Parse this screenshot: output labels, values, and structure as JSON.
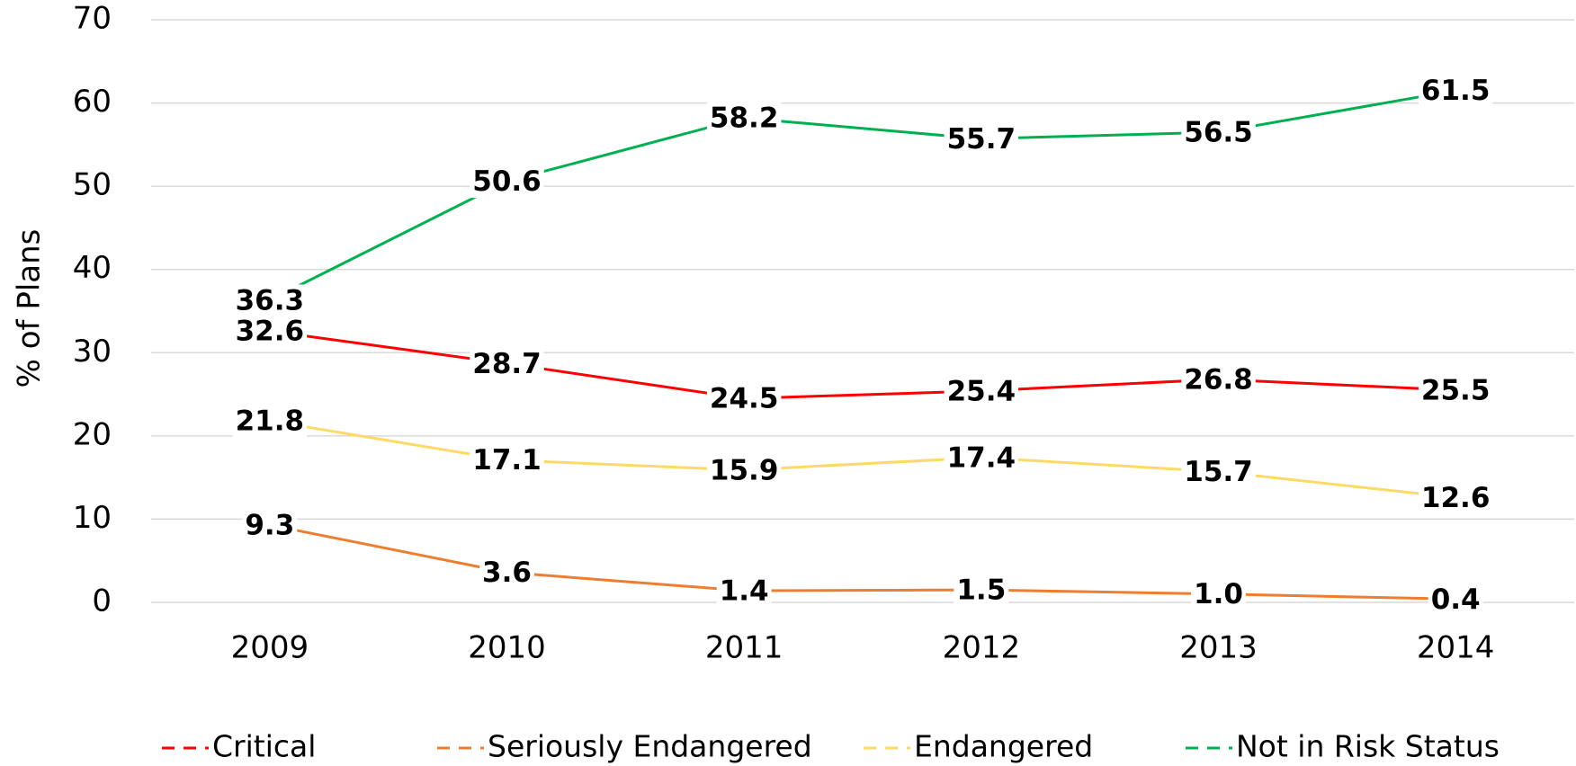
{
  "chart_data": {
    "type": "line",
    "y_label": "% of Plans",
    "categories": [
      "2009",
      "2010",
      "2011",
      "2012",
      "2013",
      "2014"
    ],
    "series": [
      {
        "name": "Critical",
        "color": "#ff0000",
        "values": [
          32.6,
          28.7,
          24.5,
          25.4,
          26.8,
          25.5
        ]
      },
      {
        "name": "Seriously Endangered",
        "color": "#ed7d31",
        "values": [
          9.3,
          3.6,
          1.4,
          1.5,
          1,
          0.4
        ],
        "value_labels": [
          "9.3",
          "3.6",
          "1.4",
          "1.5",
          "1.0",
          "0.4"
        ]
      },
      {
        "name": "Endangered",
        "color": "#ffd966",
        "values": [
          21.8,
          17.1,
          15.9,
          17.4,
          15.7,
          12.6
        ]
      },
      {
        "name": "Not in Risk Status",
        "color": "#00b050",
        "values": [
          36.3,
          50.6,
          58.2,
          55.7,
          56.5,
          61.5
        ]
      }
    ],
    "ylim": [
      0,
      70
    ],
    "yticks": [
      0,
      10,
      20,
      30,
      40,
      50,
      60,
      70
    ],
    "grid": true,
    "legend": "bottom"
  }
}
